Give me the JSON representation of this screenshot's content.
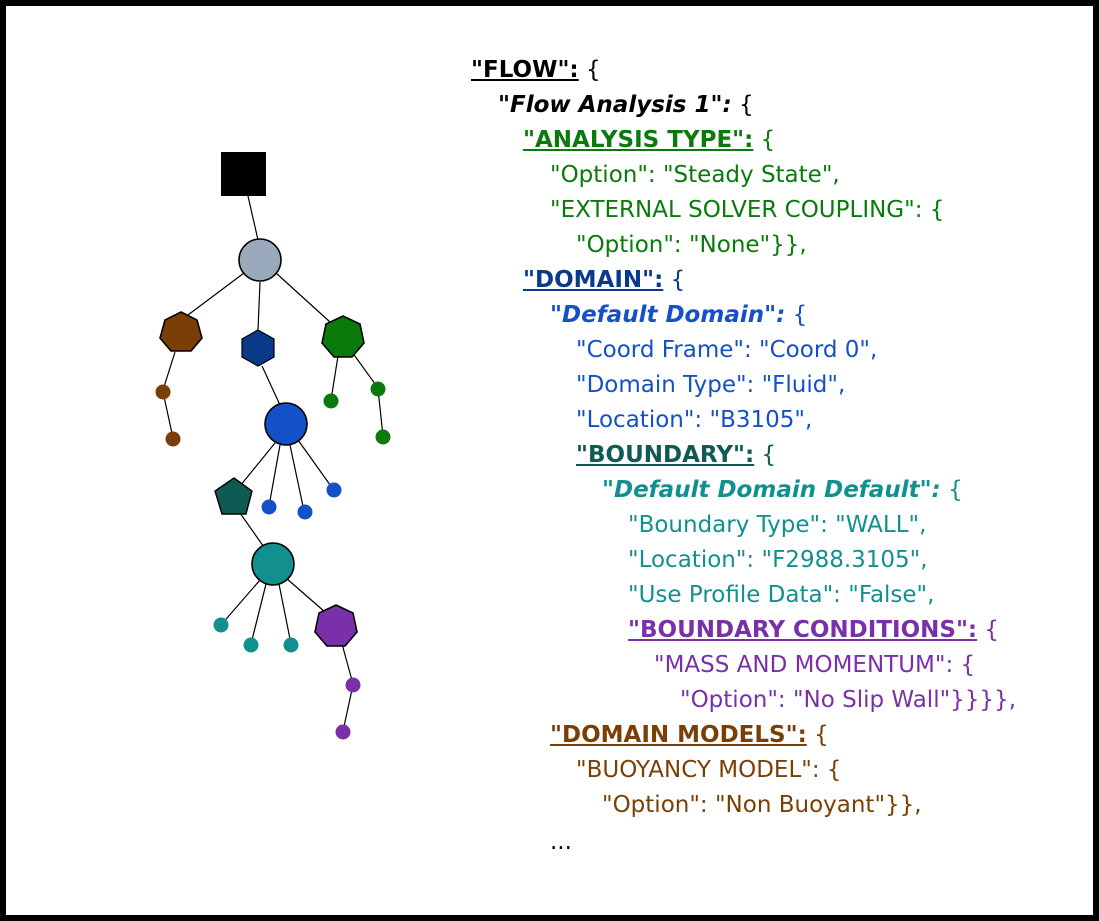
{
  "code": {
    "flow_key": "\"FLOW\":",
    "flow_open": " {",
    "analysis_key": "\"Flow Analysis 1\":",
    "analysis_open": " {",
    "analysis_type_key": "\"ANALYSIS TYPE\":",
    "analysis_type_open": " {",
    "option_steady": "\"Option\": \"Steady State\",",
    "ext_solver": "\"EXTERNAL SOLVER COUPLING\": {",
    "option_none": "\"Option\": \"None\"}},",
    "domain_key": "\"DOMAIN\":",
    "domain_open": " {",
    "default_domain_key": "\"Default Domain\":",
    "default_domain_open": " {",
    "coord_frame": "\"Coord Frame\": \"Coord 0\",",
    "domain_type": "\"Domain Type\": \"Fluid\",",
    "location_domain": "\"Location\": \"B3105\",",
    "boundary_key": "\"BOUNDARY\":",
    "boundary_open": " {",
    "default_boundary_key": "\"Default Domain Default\":",
    "default_boundary_open": " {",
    "boundary_type": "\"Boundary Type\": \"WALL\",",
    "location_boundary": "\"Location\": \"F2988.3105\",",
    "use_profile": "\"Use Profile Data\": \"False\",",
    "bc_key": "\"BOUNDARY CONDITIONS\":",
    "bc_open": " {",
    "mass_momentum": "\"MASS AND MOMENTUM\": {",
    "option_noslip": "\"Option\": \"No Slip Wall\"}}}},",
    "domain_models_key": "\"DOMAIN MODELS\":",
    "domain_models_open": " {",
    "buoyancy": "\"BUOYANCY MODEL\": {",
    "option_nonbuoyant": "\"Option\": \"Non Buoyant\"}},",
    "ellipsis": "..."
  },
  "tree_colors": {
    "root": "#000000",
    "analysis": "#9aa8bc",
    "analysis_type": "#7a3f06",
    "domain": "#0a3a8a",
    "domain_models": "#0a7a0a",
    "default_domain": "#1450c8",
    "boundary": "#0f5a52",
    "default_boundary": "#129090",
    "bc": "#7a30a8"
  }
}
